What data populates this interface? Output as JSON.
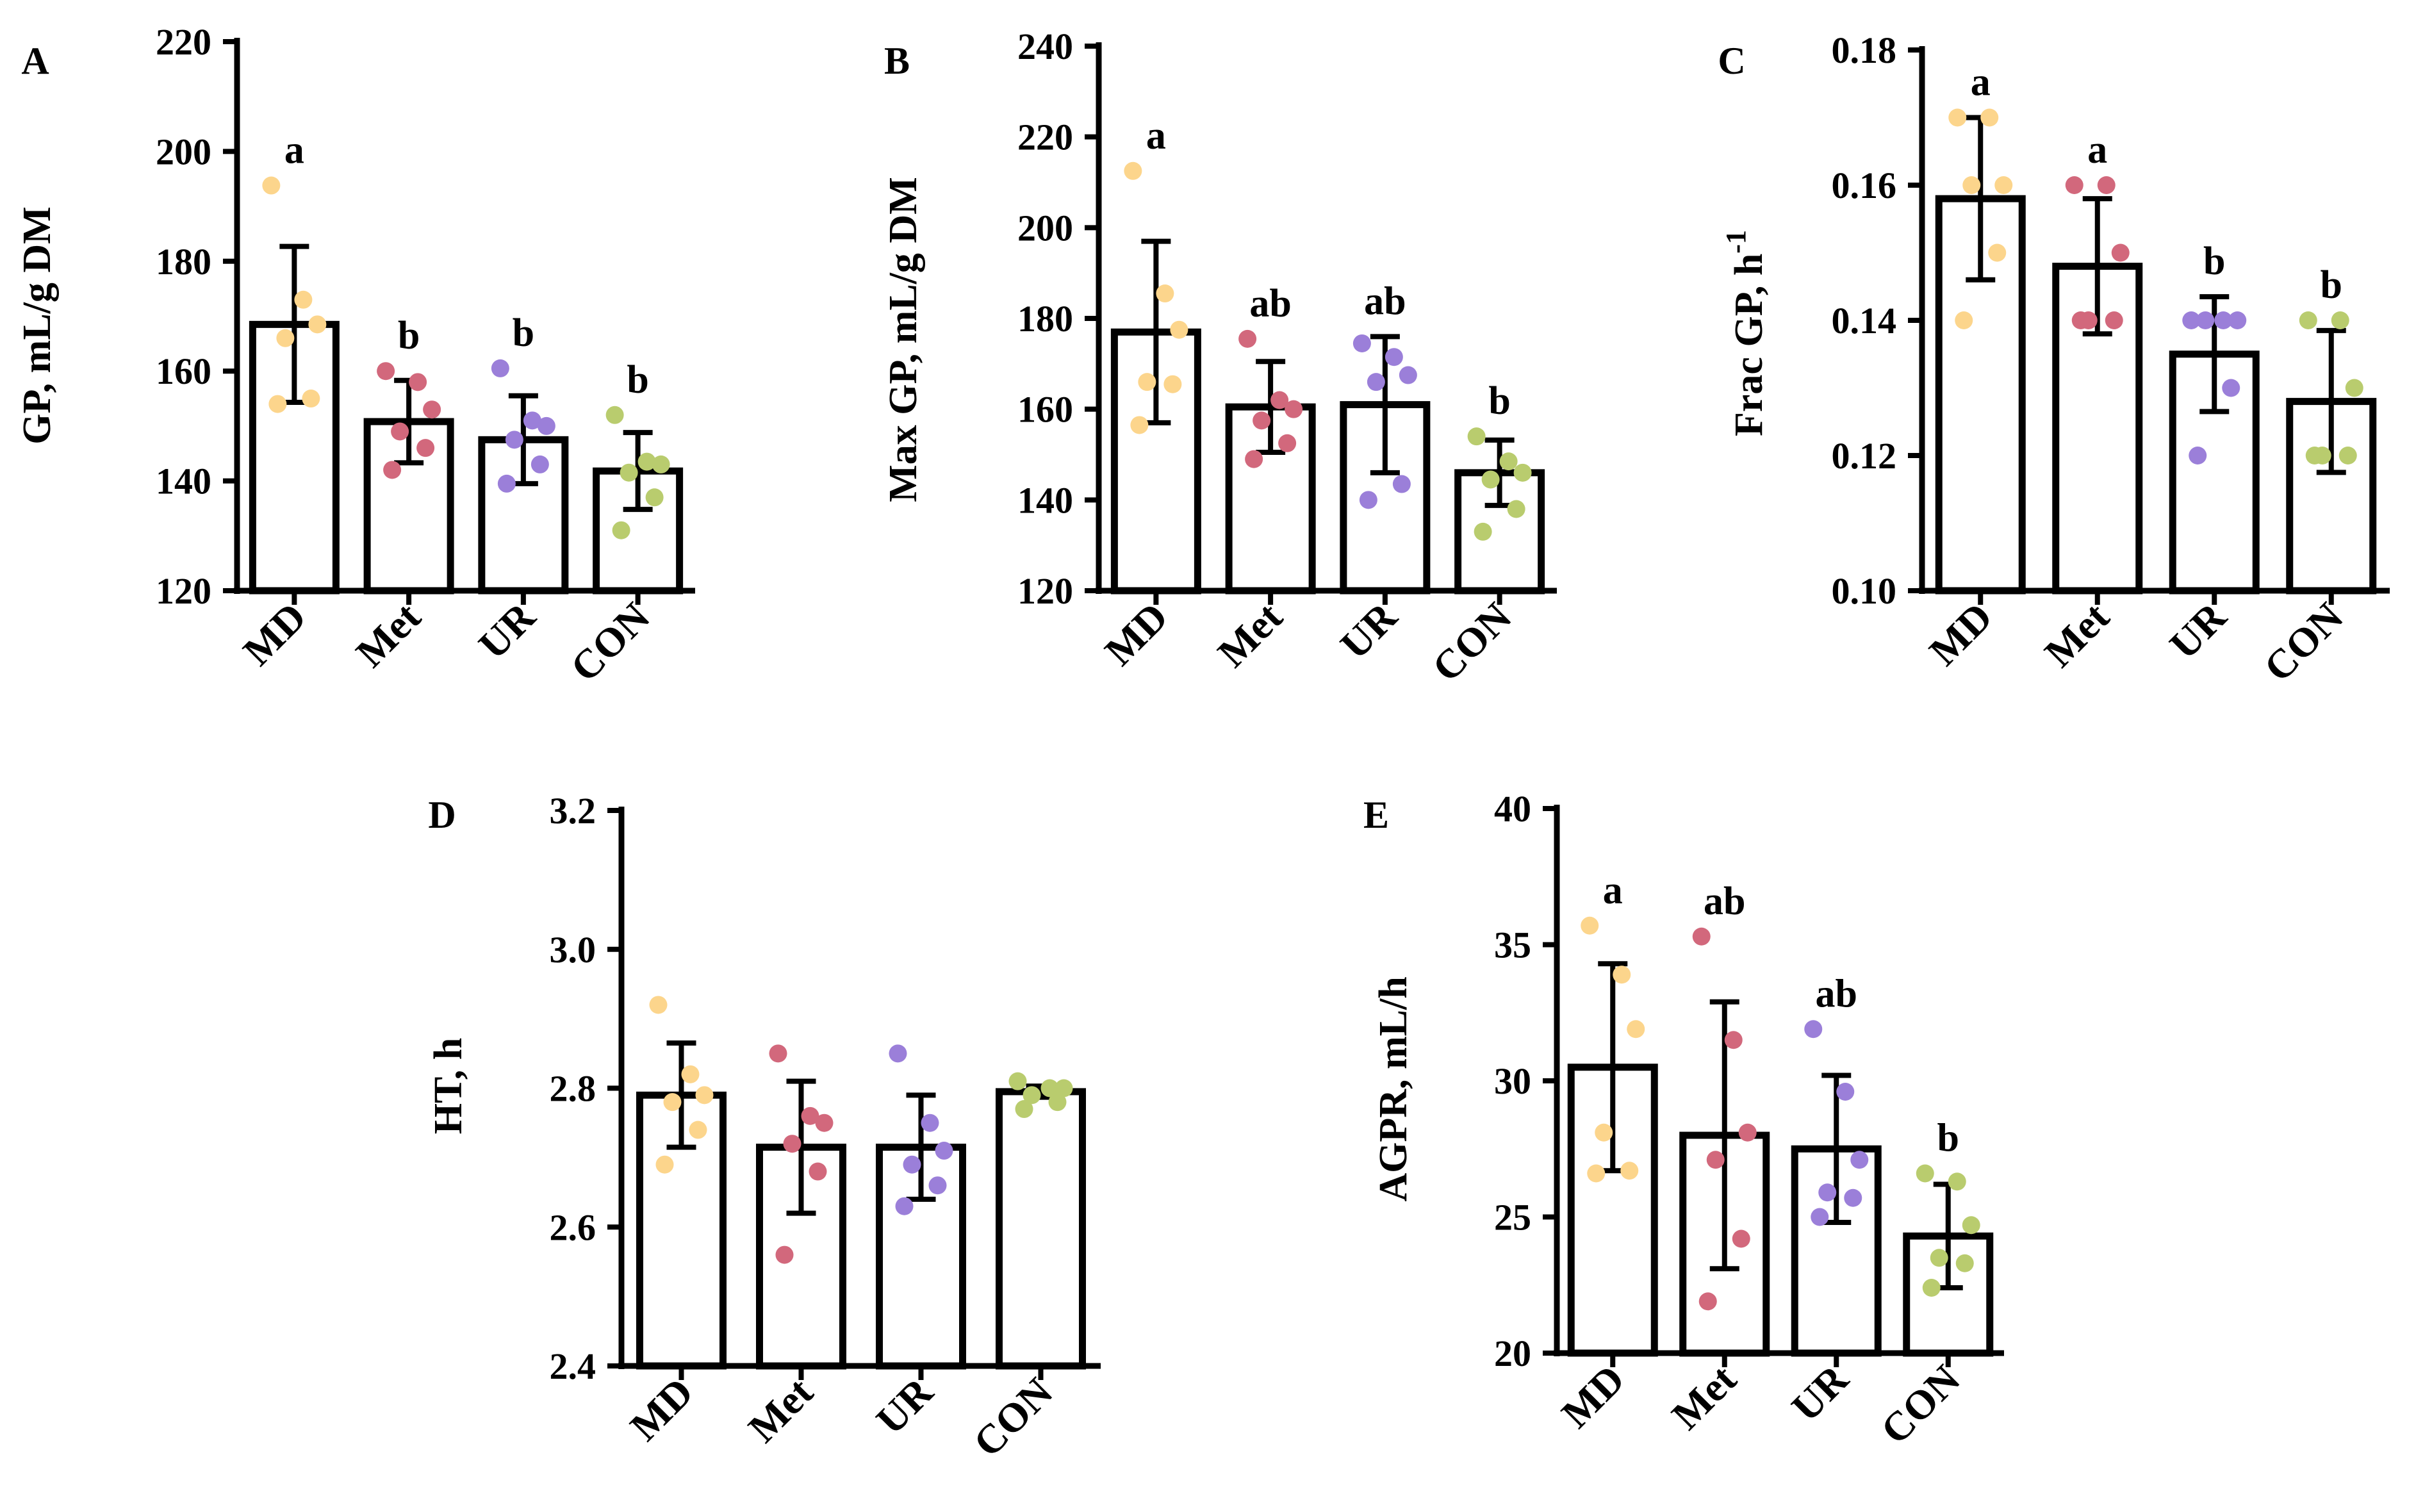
{
  "colors": {
    "MD": "#fcd58c",
    "Met": "#d2687c",
    "UR": "#9b7fd9",
    "CON": "#b9cc6e",
    "ink": "#000000",
    "bar_fill": "#ffffff"
  },
  "chart_data": [
    {
      "type": "bar",
      "panel_label": "A",
      "ylabel": "GP, mL/g DM",
      "ylim": [
        120,
        220
      ],
      "yticks": [
        120,
        140,
        160,
        180,
        200,
        220
      ],
      "ytick_labels": [
        "120",
        "140",
        "160",
        "180",
        "200",
        "220"
      ],
      "categories": [
        "MD",
        "Met",
        "UR",
        "CON"
      ],
      "values": [
        168.5,
        150.8,
        147.5,
        141.8
      ],
      "errors": [
        14.2,
        7.5,
        8.0,
        7.0
      ],
      "letters": [
        "a",
        "b",
        "b",
        "b"
      ],
      "points": [
        [
          193.8,
          173.0,
          168.5,
          166.0,
          155.0,
          154.0
        ],
        [
          160.0,
          158.0,
          153.0,
          149.0,
          146.0,
          142.0
        ],
        [
          160.5,
          151.0,
          150.0,
          147.5,
          143.0,
          139.5
        ],
        [
          152.0,
          143.5,
          143.0,
          141.5,
          137.0,
          131.0
        ]
      ]
    },
    {
      "type": "bar",
      "panel_label": "B",
      "ylabel": "Max GP, mL/g DM",
      "ylim": [
        120,
        240
      ],
      "yticks": [
        120,
        140,
        160,
        180,
        200,
        220,
        240
      ],
      "ytick_labels": [
        "120",
        "140",
        "160",
        "180",
        "200",
        "220",
        "240"
      ],
      "categories": [
        "MD",
        "Met",
        "UR",
        "CON"
      ],
      "values": [
        177.0,
        160.5,
        161.0,
        146.0
      ],
      "errors": [
        20.0,
        10.0,
        15.0,
        7.2
      ],
      "letters": [
        "a",
        "ab",
        "ab",
        "b"
      ],
      "points": [
        [
          212.5,
          185.5,
          177.5,
          166.0,
          165.5,
          156.5
        ],
        [
          175.5,
          162.0,
          160.0,
          157.5,
          152.5,
          149.0
        ],
        [
          174.5,
          171.5,
          167.5,
          166.0,
          143.5,
          140.0
        ],
        [
          154.0,
          148.5,
          146.0,
          144.5,
          138.0,
          133.0
        ]
      ]
    },
    {
      "type": "bar",
      "panel_label": "C",
      "ylabel": "Frac GP, h",
      "ylabel_sup": "-1",
      "ylim": [
        0.1,
        0.18
      ],
      "yticks": [
        0.1,
        0.12,
        0.14,
        0.16,
        0.18
      ],
      "ytick_labels": [
        "0.10",
        "0.12",
        "0.14",
        "0.16",
        "0.18"
      ],
      "categories": [
        "MD",
        "Met",
        "UR",
        "CON"
      ],
      "values": [
        0.158,
        0.148,
        0.135,
        0.128
      ],
      "errors": [
        0.012,
        0.01,
        0.0085,
        0.0105
      ],
      "letters": [
        "a",
        "a",
        "b",
        "b"
      ],
      "points": [
        [
          0.17,
          0.17,
          0.16,
          0.16,
          0.15,
          0.14
        ],
        [
          0.16,
          0.16,
          0.15,
          0.14,
          0.14,
          0.14
        ],
        [
          0.14,
          0.14,
          0.14,
          0.14,
          0.13,
          0.12
        ],
        [
          0.14,
          0.14,
          0.13,
          0.12,
          0.12,
          0.12
        ]
      ]
    },
    {
      "type": "bar",
      "panel_label": "D",
      "ylabel": "HT, h",
      "ylim": [
        2.4,
        3.2
      ],
      "yticks": [
        2.4,
        2.6,
        2.8,
        3.0,
        3.2
      ],
      "ytick_labels": [
        "2.4",
        "2.6",
        "2.8",
        "3.0",
        "3.2"
      ],
      "categories": [
        "MD",
        "Met",
        "UR",
        "CON"
      ],
      "values": [
        2.79,
        2.715,
        2.715,
        2.795
      ],
      "errors": [
        0.075,
        0.095,
        0.075,
        0.008
      ],
      "letters": [
        "",
        "",
        "",
        ""
      ],
      "points": [
        [
          2.92,
          2.82,
          2.79,
          2.78,
          2.74,
          2.69
        ],
        [
          2.85,
          2.76,
          2.75,
          2.72,
          2.68,
          2.56
        ],
        [
          2.85,
          2.75,
          2.71,
          2.69,
          2.66,
          2.63
        ],
        [
          2.81,
          2.8,
          2.8,
          2.79,
          2.78,
          2.77
        ]
      ]
    },
    {
      "type": "bar",
      "panel_label": "E",
      "ylabel": "AGPR, mL/h",
      "ylim": [
        20,
        40
      ],
      "yticks": [
        20,
        25,
        30,
        35,
        40
      ],
      "ytick_labels": [
        "20",
        "25",
        "30",
        "35",
        "40"
      ],
      "categories": [
        "MD",
        "Met",
        "UR",
        "CON"
      ],
      "values": [
        30.5,
        28.0,
        27.5,
        24.3
      ],
      "errors": [
        3.8,
        4.9,
        2.7,
        1.9
      ],
      "letters": [
        "a",
        "ab",
        "ab",
        "b"
      ],
      "points": [
        [
          35.7,
          33.9,
          31.9,
          28.1,
          26.7,
          26.6
        ],
        [
          35.3,
          31.5,
          28.1,
          27.1,
          24.2,
          21.9
        ],
        [
          31.9,
          29.6,
          27.1,
          25.9,
          25.7,
          25.0
        ],
        [
          26.6,
          26.3,
          24.7,
          23.5,
          23.3,
          22.4
        ]
      ]
    }
  ]
}
